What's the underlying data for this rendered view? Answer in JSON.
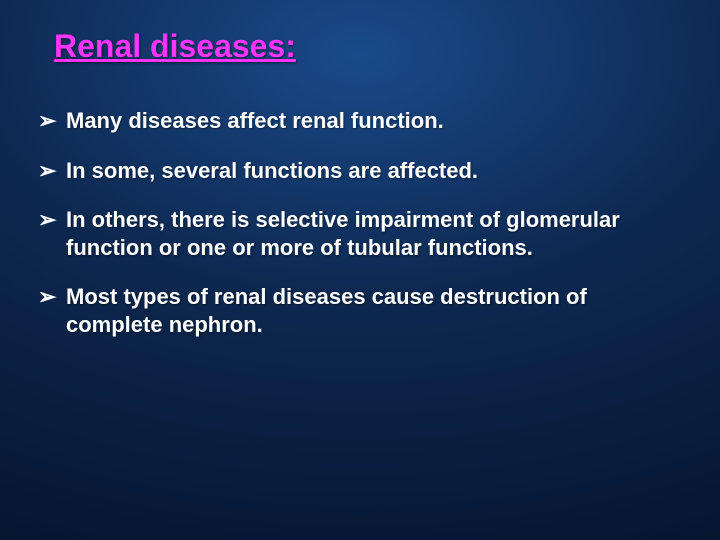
{
  "slide": {
    "title": "Renal diseases:",
    "title_color": "#ff33ff",
    "title_fontsize": 32,
    "background_gradient": {
      "inner": "#1a4a8a",
      "mid": "#0d2850",
      "outer": "#061530"
    },
    "text_color": "#ffffff",
    "bullet_color": "#ffffff",
    "bullet_marker": "➢",
    "body_fontsize": 22,
    "body_fontweight": "bold",
    "bullets": [
      "Many diseases affect renal function.",
      "In some, several functions are affected.",
      "In others, there is selective impairment of glomerular function or one or more of tubular functions.",
      "Most types of renal diseases cause destruction of  complete nephron."
    ]
  }
}
